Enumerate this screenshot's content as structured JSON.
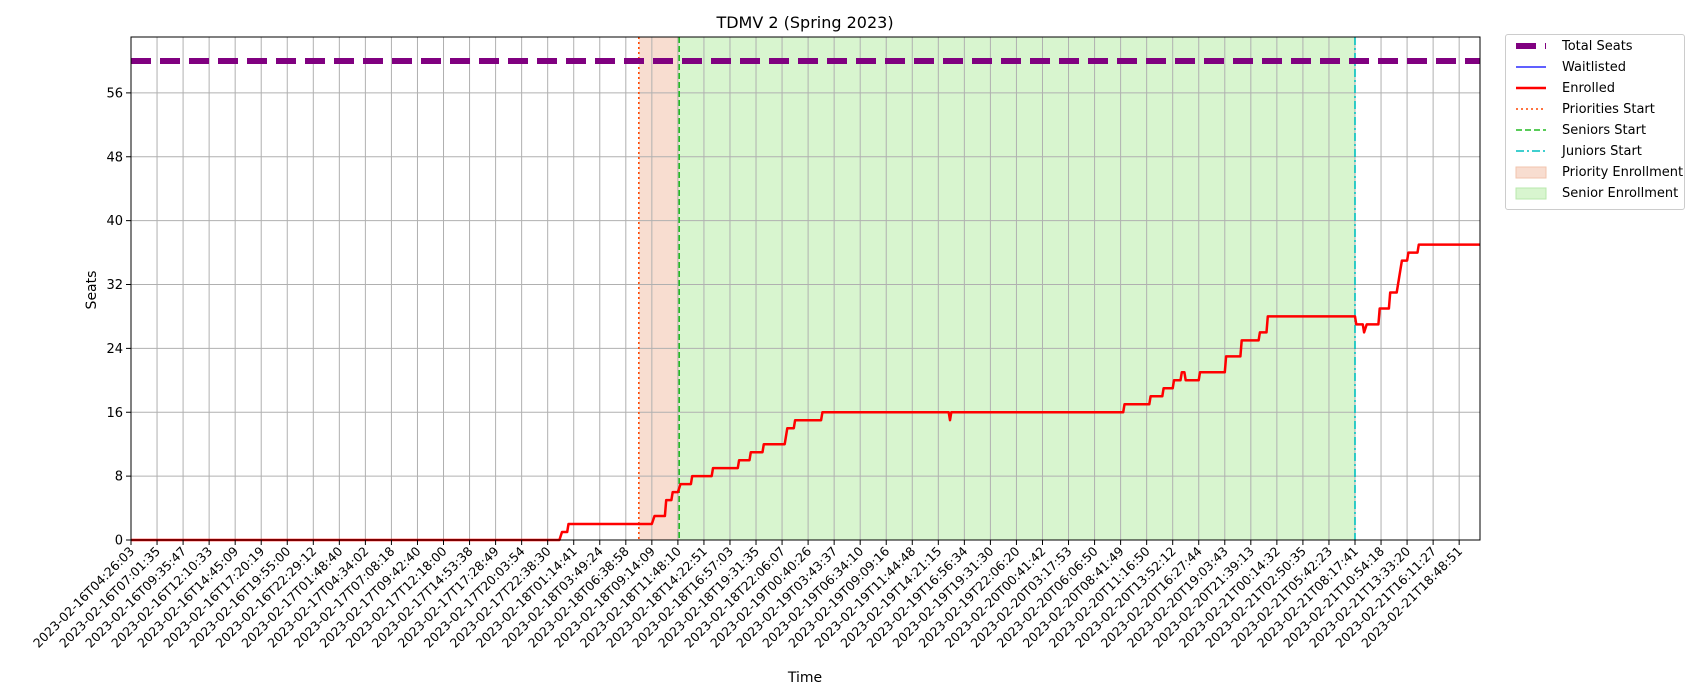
{
  "chart_data": {
    "type": "line",
    "title": "TDMV 2 (Spring 2023)",
    "xlabel": "Time",
    "ylabel": "Seats",
    "ylim": [
      0,
      63
    ],
    "yticks": [
      0,
      8,
      16,
      24,
      32,
      40,
      48,
      56
    ],
    "grid": true,
    "legend_placement": "outside upper right",
    "x_tick_labels": [
      "2023-02-16T04:26:03",
      "2023-02-16T07:01:35",
      "2023-02-16T09:35:47",
      "2023-02-16T12:10:33",
      "2023-02-16T14:45:09",
      "2023-02-16T17:20:19",
      "2023-02-16T19:55:00",
      "2023-02-16T22:29:12",
      "2023-02-17T01:48:40",
      "2023-02-17T04:34:02",
      "2023-02-17T07:08:18",
      "2023-02-17T09:42:40",
      "2023-02-17T12:18:00",
      "2023-02-17T14:53:38",
      "2023-02-17T17:28:49",
      "2023-02-17T20:03:54",
      "2023-02-17T22:38:30",
      "2023-02-18T01:14:41",
      "2023-02-18T03:49:24",
      "2023-02-18T06:38:58",
      "2023-02-18T09:14:09",
      "2023-02-18T11:48:10",
      "2023-02-18T14:22:51",
      "2023-02-18T16:57:03",
      "2023-02-18T19:31:35",
      "2023-02-18T22:06:07",
      "2023-02-19T00:40:26",
      "2023-02-19T03:43:37",
      "2023-02-19T06:34:10",
      "2023-02-19T09:09:16",
      "2023-02-19T11:44:48",
      "2023-02-19T14:21:15",
      "2023-02-19T16:56:34",
      "2023-02-19T19:31:30",
      "2023-02-19T22:06:20",
      "2023-02-20T00:41:42",
      "2023-02-20T03:17:53",
      "2023-02-20T06:06:50",
      "2023-02-20T08:41:49",
      "2023-02-20T11:16:50",
      "2023-02-20T13:52:12",
      "2023-02-20T16:27:44",
      "2023-02-20T19:03:43",
      "2023-02-20T21:39:13",
      "2023-02-21T00:14:32",
      "2023-02-21T02:50:35",
      "2023-02-21T05:42:23",
      "2023-02-21T08:17:41",
      "2023-02-21T10:54:18",
      "2023-02-21T13:33:20",
      "2023-02-21T16:11:27",
      "2023-02-21T18:48:51"
    ],
    "x_index_range": [
      0,
      51.8
    ],
    "series": [
      {
        "name": "Total Seats",
        "color": "#800080",
        "style": "dashed-thick",
        "points": [
          [
            0,
            60
          ],
          [
            51.8,
            60
          ]
        ]
      },
      {
        "name": "Waitlisted",
        "color": "#0000ff",
        "style": "solid-thin",
        "points": []
      },
      {
        "name": "Enrolled",
        "color": "#ff0000",
        "style": "solid",
        "points": [
          [
            0,
            0
          ],
          [
            16.45,
            0
          ],
          [
            16.55,
            1
          ],
          [
            16.75,
            1
          ],
          [
            16.8,
            2
          ],
          [
            20.0,
            2
          ],
          [
            20.1,
            3
          ],
          [
            20.5,
            3
          ],
          [
            20.55,
            5
          ],
          [
            20.75,
            5
          ],
          [
            20.8,
            6
          ],
          [
            21.0,
            6
          ],
          [
            21.1,
            7
          ],
          [
            21.5,
            7
          ],
          [
            21.55,
            8
          ],
          [
            22.3,
            8
          ],
          [
            22.35,
            9
          ],
          [
            23.3,
            9
          ],
          [
            23.35,
            10
          ],
          [
            23.75,
            10
          ],
          [
            23.8,
            11
          ],
          [
            24.25,
            11
          ],
          [
            24.3,
            12
          ],
          [
            25.1,
            12
          ],
          [
            25.2,
            14
          ],
          [
            25.45,
            14
          ],
          [
            25.5,
            15
          ],
          [
            26.5,
            15
          ],
          [
            26.55,
            16
          ],
          [
            31.4,
            16
          ],
          [
            31.45,
            15
          ],
          [
            31.5,
            16
          ],
          [
            38.1,
            16
          ],
          [
            38.15,
            17
          ],
          [
            39.1,
            17
          ],
          [
            39.15,
            18
          ],
          [
            39.6,
            18
          ],
          [
            39.65,
            19
          ],
          [
            40.0,
            19
          ],
          [
            40.05,
            20
          ],
          [
            40.3,
            20
          ],
          [
            40.35,
            21
          ],
          [
            40.45,
            21
          ],
          [
            40.5,
            20
          ],
          [
            41.0,
            20
          ],
          [
            41.05,
            21
          ],
          [
            42.0,
            21
          ],
          [
            42.05,
            23
          ],
          [
            42.6,
            23
          ],
          [
            42.65,
            25
          ],
          [
            43.3,
            25
          ],
          [
            43.35,
            26
          ],
          [
            43.6,
            26
          ],
          [
            43.65,
            28
          ],
          [
            47.0,
            28
          ],
          [
            47.05,
            27
          ],
          [
            47.3,
            27
          ],
          [
            47.35,
            26
          ],
          [
            47.45,
            27
          ],
          [
            47.9,
            27
          ],
          [
            47.95,
            29
          ],
          [
            48.3,
            29
          ],
          [
            48.35,
            31
          ],
          [
            48.6,
            31
          ],
          [
            48.7,
            33
          ],
          [
            48.8,
            35
          ],
          [
            49.0,
            35
          ],
          [
            49.05,
            36
          ],
          [
            49.4,
            36
          ],
          [
            49.45,
            37
          ],
          [
            51.8,
            37
          ]
        ]
      }
    ],
    "annotations": [
      {
        "name": "Priorities Start",
        "x": 19.5,
        "color": "#ff4500",
        "style": "dotted"
      },
      {
        "name": "Seniors Start",
        "x": 21.05,
        "color": "#22bb22",
        "style": "dashed"
      },
      {
        "name": "Juniors Start",
        "x": 47.0,
        "color": "#00bfbf",
        "style": "dashdot"
      }
    ],
    "spans": [
      {
        "name": "Priority Enrollment",
        "x0": 19.5,
        "x1": 21.05,
        "color": "#f8ddd0"
      },
      {
        "name": "Senior Enrollment",
        "x0": 21.05,
        "x1": 47.0,
        "color": "#d8f5cf"
      }
    ],
    "legend": [
      "Total Seats",
      "Waitlisted",
      "Enrolled",
      "Priorities Start",
      "Seniors Start",
      "Juniors Start",
      "Priority Enrollment",
      "Senior Enrollment"
    ]
  }
}
